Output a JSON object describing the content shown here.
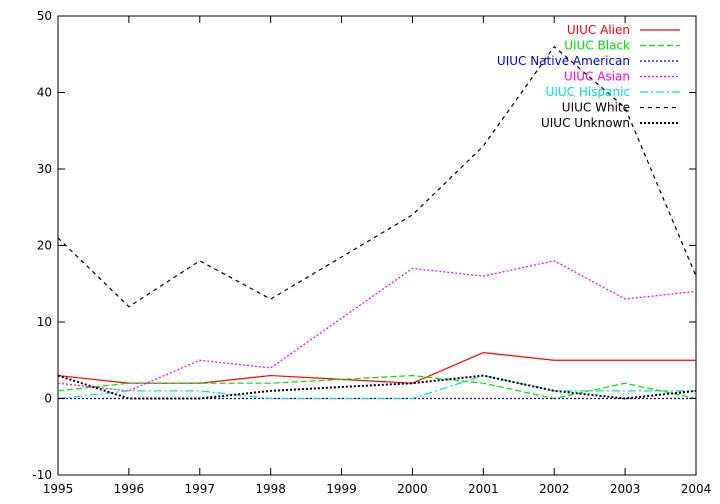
{
  "chart_data": {
    "type": "line",
    "title": "",
    "xlabel": "",
    "ylabel": "",
    "x": [
      1995,
      1996,
      1997,
      1998,
      1999,
      2000,
      2001,
      2002,
      2003,
      2004
    ],
    "xlim": [
      1995,
      2004
    ],
    "ylim": [
      -10,
      50
    ],
    "xticks": [
      1995,
      1996,
      1997,
      1998,
      1999,
      2000,
      2001,
      2002,
      2003,
      2004
    ],
    "yticks": [
      -10,
      0,
      10,
      20,
      30,
      40,
      50
    ],
    "grid": false,
    "legend_position": "top-right",
    "series": [
      {
        "name": "UIUC Alien",
        "color": "#ff0000",
        "dash": "solid",
        "values": [
          3,
          2,
          2,
          3,
          2.5,
          2,
          6,
          5,
          5,
          5
        ]
      },
      {
        "name": "UIUC Black",
        "color": "#00dd00",
        "dash": "dashed",
        "values": [
          1,
          2,
          2,
          2,
          2.5,
          3,
          2,
          0,
          2,
          0
        ]
      },
      {
        "name": "UIUC Native American",
        "color": "#0000cc",
        "dash": "dotted",
        "values": [
          0,
          0,
          0,
          0,
          0,
          0,
          0,
          0,
          0,
          0
        ]
      },
      {
        "name": "UIUC Asian",
        "color": "#ff00ff",
        "dash": "dotted",
        "values": [
          2,
          1,
          5,
          4,
          10.5,
          17,
          16,
          18,
          13,
          14
        ]
      },
      {
        "name": "UIUC Hispanic",
        "color": "#00dddd",
        "dash": "dashdot",
        "values": [
          0,
          1,
          1,
          0,
          0,
          0,
          3,
          1,
          1,
          1
        ]
      },
      {
        "name": "UIUC White",
        "color": "#000000",
        "dash": "dashed-sparse",
        "values": [
          21,
          12,
          18,
          13,
          18.5,
          24,
          33,
          46,
          38,
          16
        ]
      },
      {
        "name": "UIUC Unknown",
        "color": "#000000",
        "dash": "dotted-heavy",
        "values": [
          3,
          0,
          0,
          1,
          1.5,
          2,
          3,
          1,
          0,
          1
        ]
      }
    ]
  }
}
